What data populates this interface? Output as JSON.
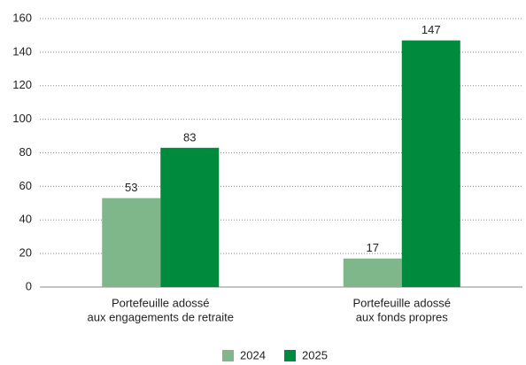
{
  "chart_data": {
    "type": "bar",
    "categories": [
      [
        "Portefeuille adossé",
        "aux engagements de retraite"
      ],
      [
        "Portefeuille adossé",
        "aux fonds propres"
      ]
    ],
    "series": [
      {
        "name": "2024",
        "color": "#7fb68a",
        "values": [
          53,
          17
        ]
      },
      {
        "name": "2025",
        "color": "#008a3e",
        "values": [
          83,
          147
        ]
      }
    ],
    "ylim": [
      0,
      160
    ],
    "yticks": [
      0,
      20,
      40,
      60,
      80,
      100,
      120,
      140,
      160
    ],
    "grid": true,
    "legend": "bottom"
  }
}
